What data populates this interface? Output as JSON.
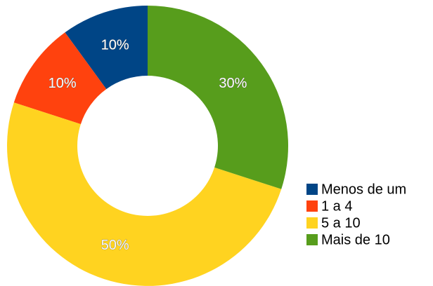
{
  "chart_data": {
    "type": "donut",
    "categories": [
      "Menos de um",
      "1 a 4",
      "5 a 10",
      "Mais de 10"
    ],
    "values": [
      10,
      10,
      50,
      30
    ],
    "value_labels": [
      "10%",
      "10%",
      "50%",
      "30%"
    ],
    "colors": [
      "#004586",
      "#ff420e",
      "#ffd320",
      "#579d1c"
    ],
    "legend": "right"
  }
}
